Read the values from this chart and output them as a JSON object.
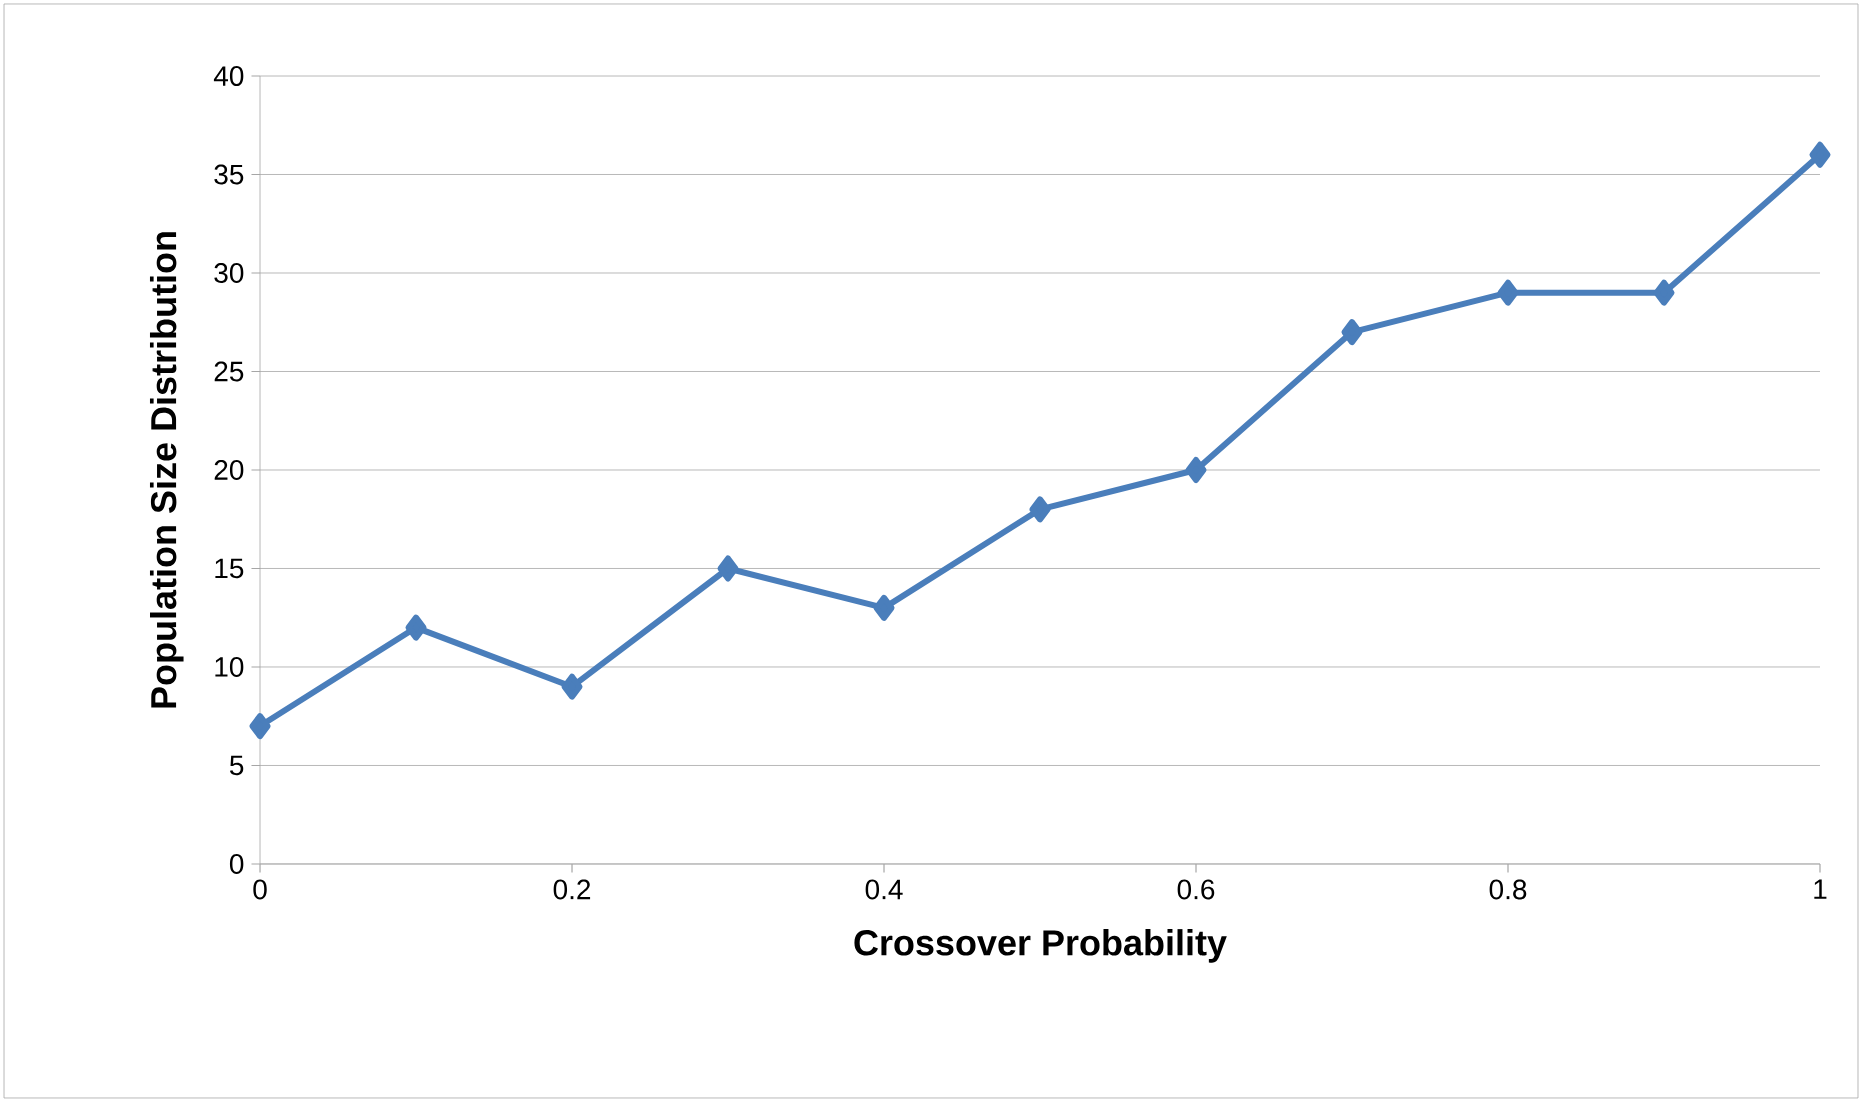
{
  "chart_data": {
    "type": "line",
    "xlabel": "Crossover Probability",
    "ylabel": "Population Size Distribution",
    "x": [
      0,
      0.1,
      0.2,
      0.3,
      0.4,
      0.5,
      0.6,
      0.7,
      0.8,
      0.9,
      1
    ],
    "series": [
      {
        "color": "#4a7ebb",
        "values": [
          7,
          12,
          9,
          15,
          13,
          18,
          20,
          27,
          29,
          29,
          36
        ]
      }
    ],
    "xlim": [
      0,
      1
    ],
    "xticks": [
      0,
      0.2,
      0.4,
      0.6,
      0.8,
      1
    ],
    "ylim": [
      0,
      40
    ],
    "yticks": [
      0,
      5,
      10,
      15,
      20,
      25,
      30,
      35,
      40
    ],
    "grid": "y",
    "marker": "diamond",
    "line_style": "solid"
  }
}
